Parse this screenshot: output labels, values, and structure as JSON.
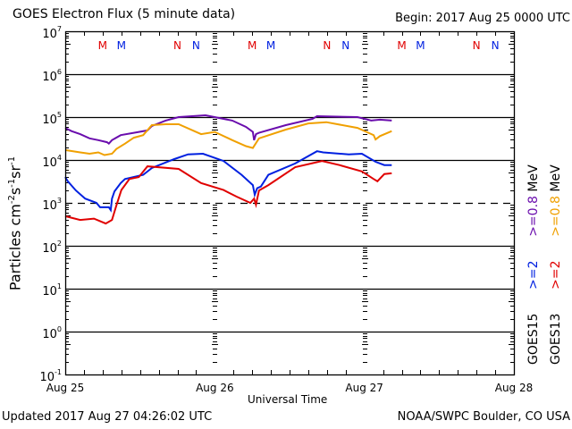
{
  "chart_data": {
    "type": "line",
    "title": "GOES Electron Flux (5 minute data)",
    "begin": "Begin: 2017 Aug 25 0000 UTC",
    "xlabel": "Universal Time",
    "ylabel_parts": {
      "base": "Particles cm",
      "e1": "-2",
      "s": "s",
      "e2": "-1",
      "sr": "sr",
      "e3": "-1"
    },
    "yscale": "log",
    "ylim": [
      0.1,
      10000000
    ],
    "xlim_hours": [
      0,
      72
    ],
    "x_tick_labels": [
      "Aug 25",
      "Aug 26",
      "Aug 27",
      "Aug 28"
    ],
    "y_tick_labels": [
      {
        "base": "10",
        "exp": "7",
        "value": 10000000
      },
      {
        "base": "10",
        "exp": "6",
        "value": 1000000
      },
      {
        "base": "10",
        "exp": "5",
        "value": 100000
      },
      {
        "base": "10",
        "exp": "4",
        "value": 10000
      },
      {
        "base": "10",
        "exp": "3",
        "value": 1000
      },
      {
        "base": "10",
        "exp": "2",
        "value": 100
      },
      {
        "base": "10",
        "exp": "1",
        "value": 10
      },
      {
        "base": "10",
        "exp": "0",
        "value": 1
      },
      {
        "base": "10",
        "exp": "-1",
        "value": 0.1
      }
    ],
    "threshold_line": {
      "value": 1000,
      "style": "dashed"
    },
    "day_markers": [
      {
        "label": "M",
        "hour": 6,
        "color": "#e00000"
      },
      {
        "label": "M",
        "hour": 9,
        "color": "#0020e0"
      },
      {
        "label": "N",
        "hour": 18,
        "color": "#e00000"
      },
      {
        "label": "N",
        "hour": 21,
        "color": "#0020e0"
      },
      {
        "label": "M",
        "hour": 30,
        "color": "#e00000"
      },
      {
        "label": "M",
        "hour": 33,
        "color": "#0020e0"
      },
      {
        "label": "N",
        "hour": 42,
        "color": "#e00000"
      },
      {
        "label": "N",
        "hour": 45,
        "color": "#0020e0"
      },
      {
        "label": "M",
        "hour": 54,
        "color": "#e00000"
      },
      {
        "label": "M",
        "hour": 57,
        "color": "#0020e0"
      },
      {
        "label": "N",
        "hour": 66,
        "color": "#e00000"
      },
      {
        "label": "N",
        "hour": 69,
        "color": "#0020e0"
      }
    ],
    "legend": {
      "col1": {
        "sat": "GOES15",
        "lo": ">=2",
        "hi": ">=0.8",
        "unit": "MeV",
        "lo_color": "#0020e0",
        "hi_color": "#6a0dad"
      },
      "col2": {
        "sat": "GOES13",
        "lo": ">=2",
        "hi": ">=0.8",
        "unit": "MeV",
        "lo_color": "#e00000",
        "hi_color": "#f0a000"
      }
    },
    "series": [
      {
        "name": "GOES15 >=0.8 MeV",
        "color": "#6a0dad",
        "x_hours": [
          0,
          1.0,
          2.4,
          3.9,
          5.3,
          6.7,
          7.0,
          7.5,
          8.9,
          11.0,
          13.2,
          13.9,
          16.1,
          18.2,
          22.5,
          26.8,
          29.0,
          30.1,
          30.3,
          30.6,
          31.1,
          35.4,
          39.7,
          40.4,
          46.9,
          49.1,
          50.5,
          52.4
        ],
        "values": [
          56000,
          47000,
          40000,
          32000,
          29000,
          26000,
          24000,
          29000,
          38000,
          43000,
          49000,
          62000,
          83000,
          100000,
          110000,
          83000,
          59000,
          45000,
          29000,
          40000,
          43000,
          65000,
          91000,
          105000,
          100000,
          83000,
          87000,
          83000
        ]
      },
      {
        "name": "GOES13 >=0.8 MeV",
        "color": "#f0a000",
        "x_hours": [
          0,
          2.4,
          3.9,
          5.3,
          6.3,
          7.5,
          8.2,
          9.6,
          11.0,
          12.5,
          13.9,
          16.1,
          18.2,
          21.8,
          24.0,
          26.8,
          29.0,
          30.1,
          31.1,
          35.4,
          39.0,
          41.9,
          46.9,
          49.5,
          49.8,
          50.5,
          52.4
        ],
        "values": [
          17000,
          15000,
          14000,
          15000,
          13000,
          14000,
          18000,
          24000,
          33000,
          38000,
          65000,
          68000,
          68000,
          40000,
          45000,
          29000,
          21000,
          19000,
          32000,
          51000,
          71000,
          76000,
          56000,
          38000,
          30000,
          36000,
          47000
        ]
      },
      {
        "name": "GOES15 >=2 MeV",
        "color": "#0020e0",
        "x_hours": [
          0,
          0.4,
          1.7,
          3.2,
          5.0,
          5.6,
          7.0,
          7.3,
          7.5,
          7.9,
          8.9,
          9.6,
          12.5,
          13.9,
          17.5,
          19.7,
          22.1,
          25.4,
          28.3,
          30.1,
          30.4,
          30.8,
          31.4,
          32.6,
          36.9,
          40.4,
          41.4,
          45.5,
          47.6,
          49.8,
          51.2,
          52.4
        ],
        "values": [
          4000,
          3200,
          1950,
          1260,
          1000,
          790,
          790,
          680,
          1260,
          1860,
          2900,
          3600,
          4500,
          6500,
          10500,
          13500,
          14000,
          9500,
          4500,
          2600,
          1550,
          2200,
          2400,
          4500,
          8300,
          16000,
          15000,
          13500,
          14000,
          9100,
          7600,
          7600
        ]
      },
      {
        "name": "GOES13 >=2 MeV",
        "color": "#e00000",
        "x_hours": [
          0,
          2.4,
          4.6,
          6.5,
          7.5,
          8.2,
          9.0,
          10.3,
          11.8,
          13.2,
          18.2,
          21.8,
          25.4,
          27.5,
          29.7,
          30.3,
          30.6,
          31.1,
          32.6,
          36.9,
          41.2,
          44.0,
          47.6,
          49.5,
          50.1,
          51.2,
          52.4
        ],
        "values": [
          490,
          400,
          430,
          330,
          400,
          870,
          2000,
          3600,
          4000,
          7100,
          6200,
          2900,
          2000,
          1400,
          1000,
          1260,
          910,
          1950,
          2600,
          6800,
          9500,
          7600,
          5400,
          3600,
          3200,
          4700,
          4900
        ]
      }
    ]
  },
  "footer": {
    "updated": "Updated 2017 Aug 27 04:26:02 UTC",
    "credit": "NOAA/SWPC Boulder, CO USA"
  }
}
